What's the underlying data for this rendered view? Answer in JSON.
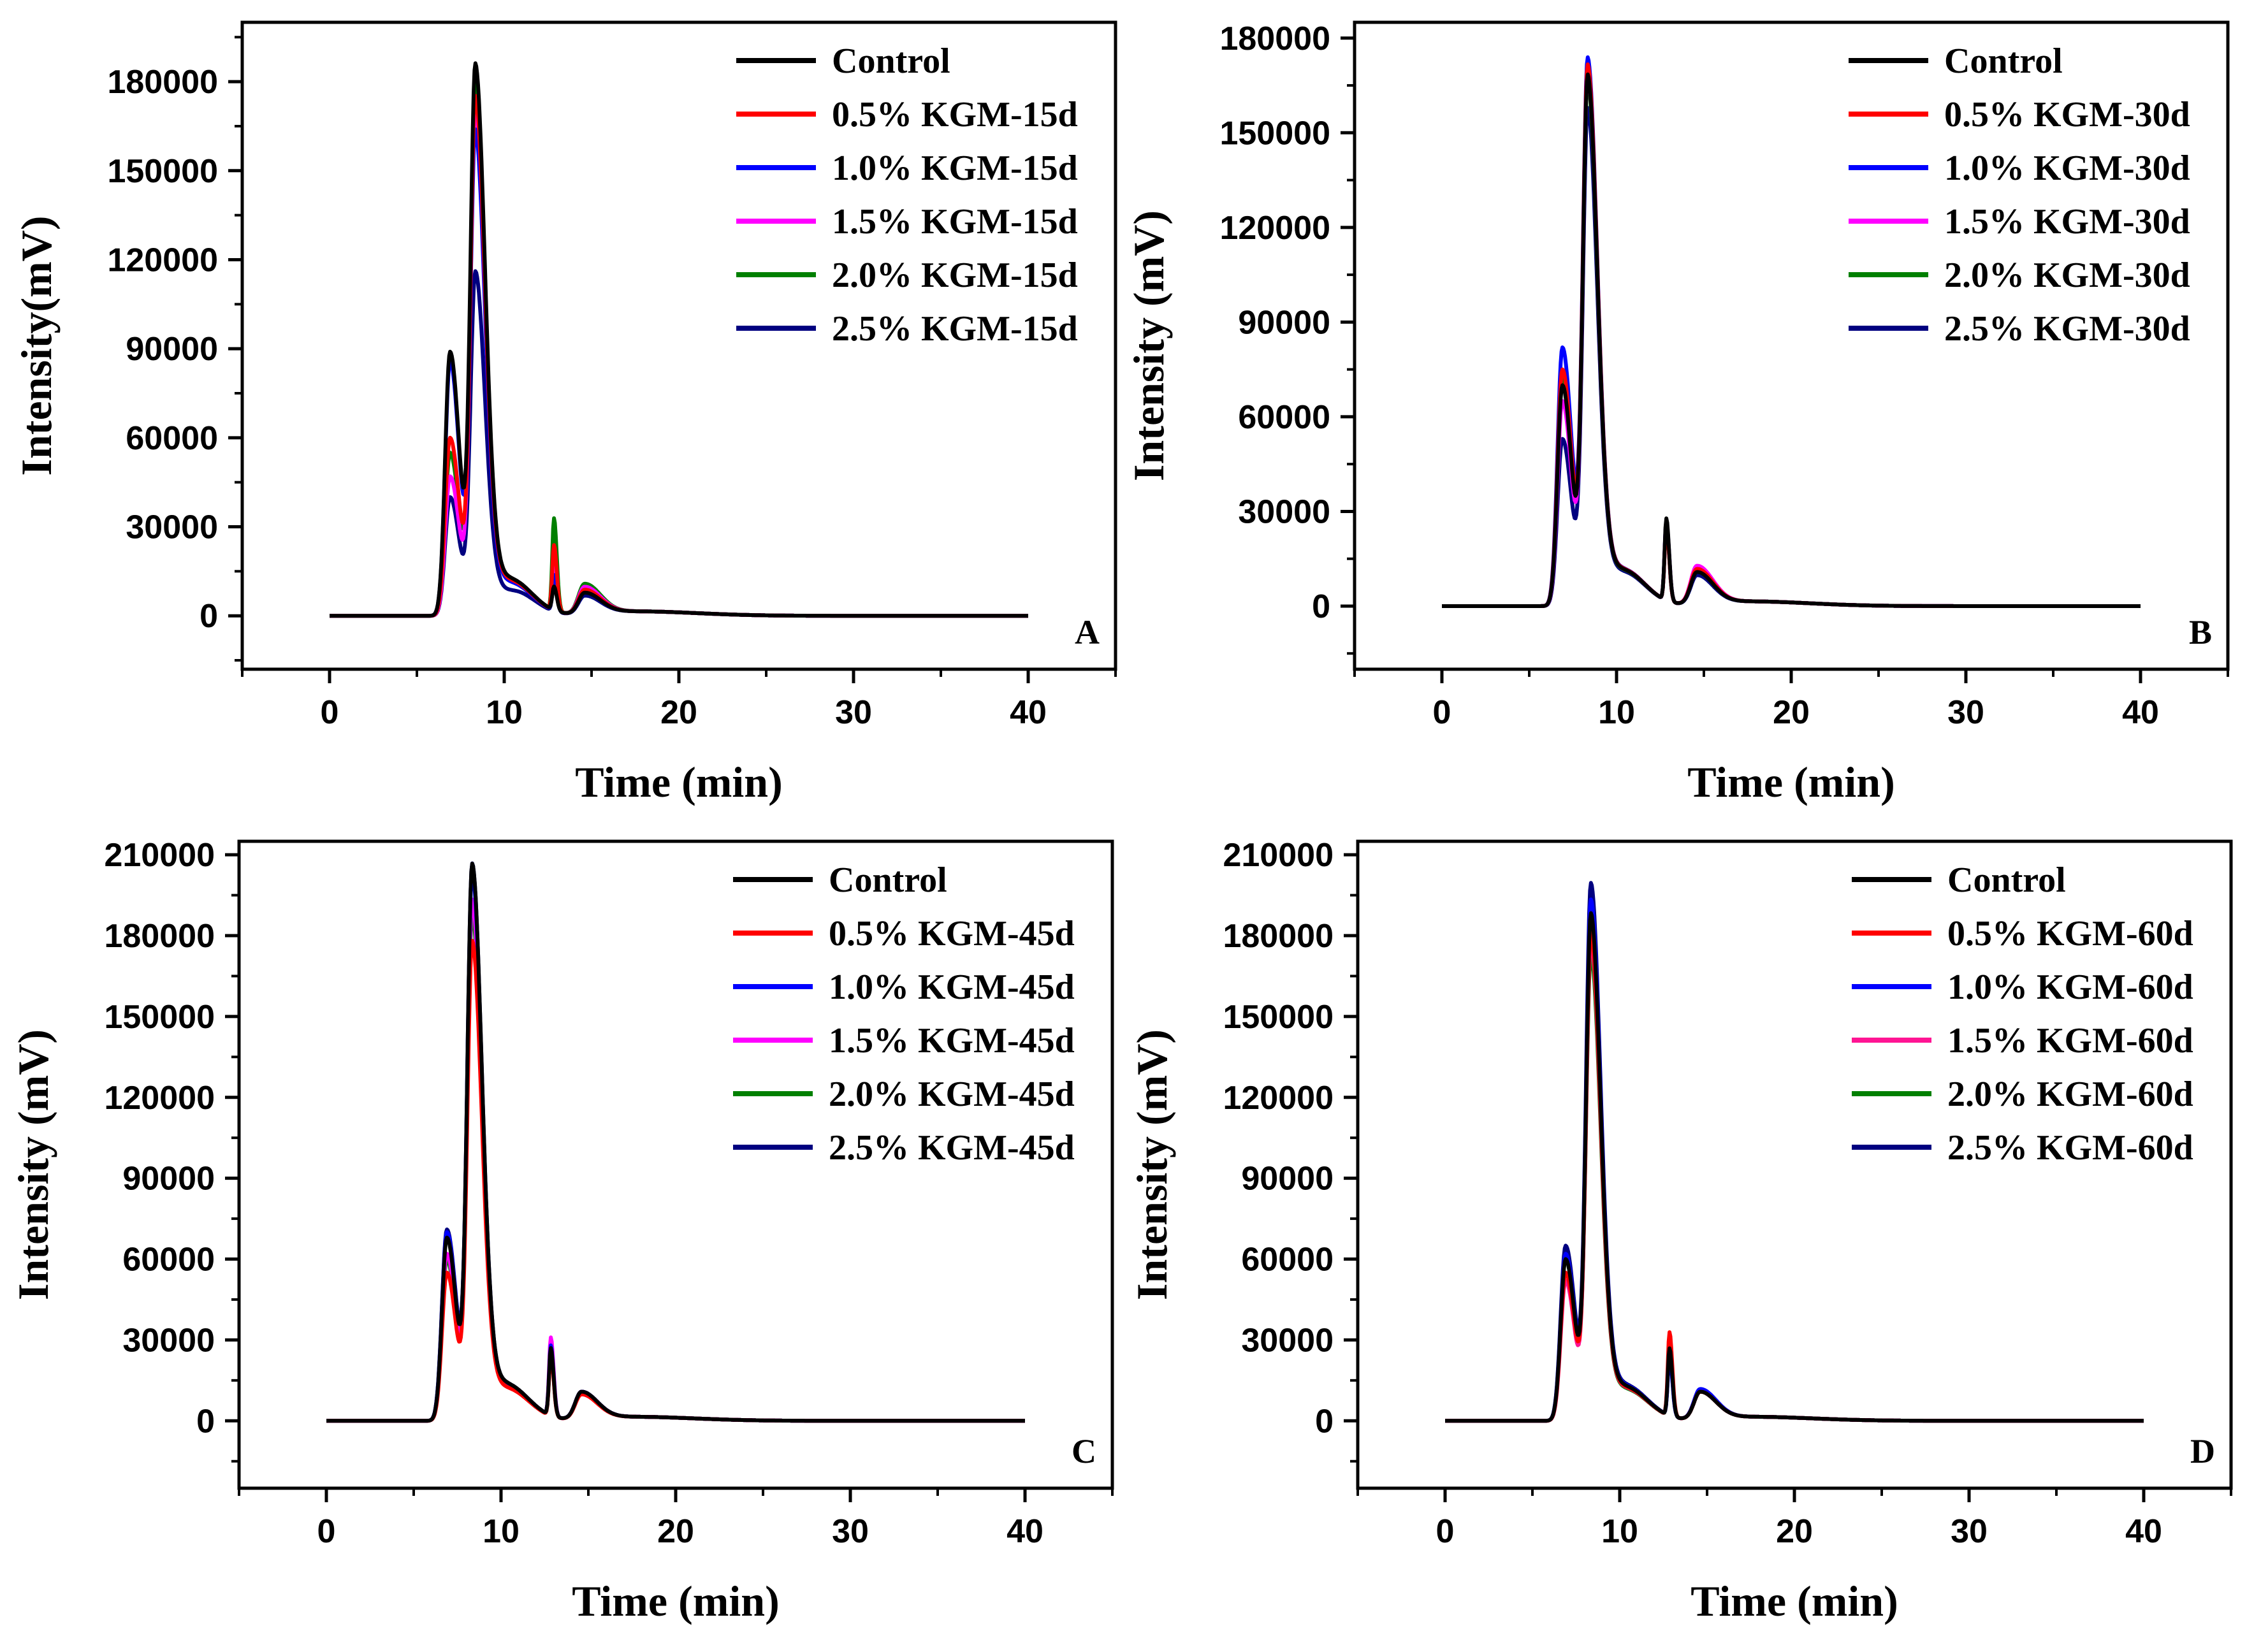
{
  "chart_data": [
    {
      "type": "line",
      "panel_label": "A",
      "xlabel": "Time (min)",
      "ylabel": "Intensity(mV)",
      "xlim": [
        -5,
        45
      ],
      "ylim": [
        -18000,
        200000
      ],
      "xticks": [
        0,
        10,
        20,
        30,
        40
      ],
      "yticks": [
        0,
        30000,
        60000,
        90000,
        120000,
        150000,
        180000
      ],
      "legend_position": "top-right",
      "series": [
        {
          "name": "Control",
          "color": "#000000",
          "peaks": {
            "p1": 89000,
            "p2": 182000,
            "p3": 8000,
            "p4": 7000
          }
        },
        {
          "name": "0.5% KGM-15d",
          "color": "#ff0000",
          "peaks": {
            "p1": 60000,
            "p2": 172000,
            "p3": 22000,
            "p4": 8000
          }
        },
        {
          "name": "1.0% KGM-15d",
          "color": "#0000ff",
          "peaks": {
            "p1": 86000,
            "p2": 160000,
            "p3": 12000,
            "p4": 8000
          }
        },
        {
          "name": "1.5% KGM-15d",
          "color": "#ff00ff",
          "peaks": {
            "p1": 47000,
            "p2": 168000,
            "p3": 18000,
            "p4": 9000
          }
        },
        {
          "name": "2.0% KGM-15d",
          "color": "#008000",
          "peaks": {
            "p1": 55000,
            "p2": 178000,
            "p3": 31000,
            "p4": 10000
          }
        },
        {
          "name": "2.5% KGM-15d",
          "color": "#000080",
          "peaks": {
            "p1": 40000,
            "p2": 114000,
            "p3": 9000,
            "p4": 6000
          }
        }
      ]
    },
    {
      "type": "line",
      "panel_label": "B",
      "xlabel": "Time (min)",
      "ylabel": "Intensity (mV)",
      "xlim": [
        -5,
        45
      ],
      "ylim": [
        -20000,
        185000
      ],
      "xticks": [
        0,
        10,
        20,
        30,
        40
      ],
      "yticks": [
        0,
        30000,
        60000,
        90000,
        120000,
        150000,
        180000
      ],
      "legend_position": "top-right",
      "series": [
        {
          "name": "Control",
          "color": "#000000",
          "peaks": {
            "p1": 70000,
            "p2": 165000,
            "p3": 26000,
            "p4": 10000
          }
        },
        {
          "name": "0.5% KGM-30d",
          "color": "#ff0000",
          "peaks": {
            "p1": 75000,
            "p2": 168000,
            "p3": 24000,
            "p4": 11000
          }
        },
        {
          "name": "1.0% KGM-30d",
          "color": "#0000ff",
          "peaks": {
            "p1": 82000,
            "p2": 170000,
            "p3": 25000,
            "p4": 10000
          }
        },
        {
          "name": "1.5% KGM-30d",
          "color": "#ff00ff",
          "peaks": {
            "p1": 65000,
            "p2": 165000,
            "p3": 25000,
            "p4": 12000
          }
        },
        {
          "name": "2.0% KGM-30d",
          "color": "#008000",
          "peaks": {
            "p1": 73000,
            "p2": 163000,
            "p3": 24000,
            "p4": 10000
          }
        },
        {
          "name": "2.5% KGM-30d",
          "color": "#000080",
          "peaks": {
            "p1": 53000,
            "p2": 155000,
            "p3": 25000,
            "p4": 9000
          }
        }
      ]
    },
    {
      "type": "line",
      "panel_label": "C",
      "xlabel": "Time (min)",
      "ylabel": "Intensity (mV)",
      "xlim": [
        -5,
        45
      ],
      "ylim": [
        -25000,
        215000
      ],
      "xticks": [
        0,
        10,
        20,
        30,
        40
      ],
      "yticks": [
        0,
        30000,
        60000,
        90000,
        120000,
        150000,
        180000,
        210000
      ],
      "legend_position": "top-right",
      "series": [
        {
          "name": "Control",
          "color": "#000000",
          "peaks": {
            "p1": 68000,
            "p2": 203000,
            "p3": 25000,
            "p4": 10000
          }
        },
        {
          "name": "0.5% KGM-45d",
          "color": "#ff0000",
          "peaks": {
            "p1": 55000,
            "p2": 175000,
            "p3": 23000,
            "p4": 9000
          }
        },
        {
          "name": "1.0% KGM-45d",
          "color": "#0000ff",
          "peaks": {
            "p1": 70000,
            "p2": 200000,
            "p3": 26000,
            "p4": 10000
          }
        },
        {
          "name": "1.5% KGM-45d",
          "color": "#ff00ff",
          "peaks": {
            "p1": 62000,
            "p2": 190000,
            "p3": 29000,
            "p4": 10000
          }
        },
        {
          "name": "2.0% KGM-45d",
          "color": "#008000",
          "peaks": {
            "p1": 60000,
            "p2": 185000,
            "p3": 24000,
            "p4": 10000
          }
        },
        {
          "name": "2.5% KGM-45d",
          "color": "#000080",
          "peaks": {
            "p1": 71000,
            "p2": 203000,
            "p3": 25000,
            "p4": 10000
          }
        }
      ]
    },
    {
      "type": "line",
      "panel_label": "D",
      "xlabel": "Time (min)",
      "ylabel": "Intensity (mV)",
      "xlim": [
        -5,
        45
      ],
      "ylim": [
        -25000,
        215000
      ],
      "xticks": [
        0,
        10,
        20,
        30,
        40
      ],
      "yticks": [
        0,
        30000,
        60000,
        90000,
        120000,
        150000,
        180000,
        210000
      ],
      "legend_position": "top-right",
      "series": [
        {
          "name": "Control",
          "color": "#000000",
          "peaks": {
            "p1": 60000,
            "p2": 185000,
            "p3": 25000,
            "p4": 10000
          }
        },
        {
          "name": "0.5% KGM-60d",
          "color": "#ff0000",
          "peaks": {
            "p1": 55000,
            "p2": 178000,
            "p3": 31000,
            "p4": 10000
          }
        },
        {
          "name": "1.0% KGM-60d",
          "color": "#0000ff",
          "peaks": {
            "p1": 62000,
            "p2": 190000,
            "p3": 22000,
            "p4": 11000
          }
        },
        {
          "name": "1.5% KGM-60d",
          "color": "#ff1493",
          "peaks": {
            "p1": 52000,
            "p2": 175000,
            "p3": 27000,
            "p4": 10000
          }
        },
        {
          "name": "2.0% KGM-60d",
          "color": "#008000",
          "peaks": {
            "p1": 60000,
            "p2": 170000,
            "p3": 26000,
            "p4": 10000
          }
        },
        {
          "name": "2.5% KGM-60d",
          "color": "#000080",
          "peaks": {
            "p1": 65000,
            "p2": 196000,
            "p3": 23000,
            "p4": 10000
          }
        }
      ]
    }
  ]
}
